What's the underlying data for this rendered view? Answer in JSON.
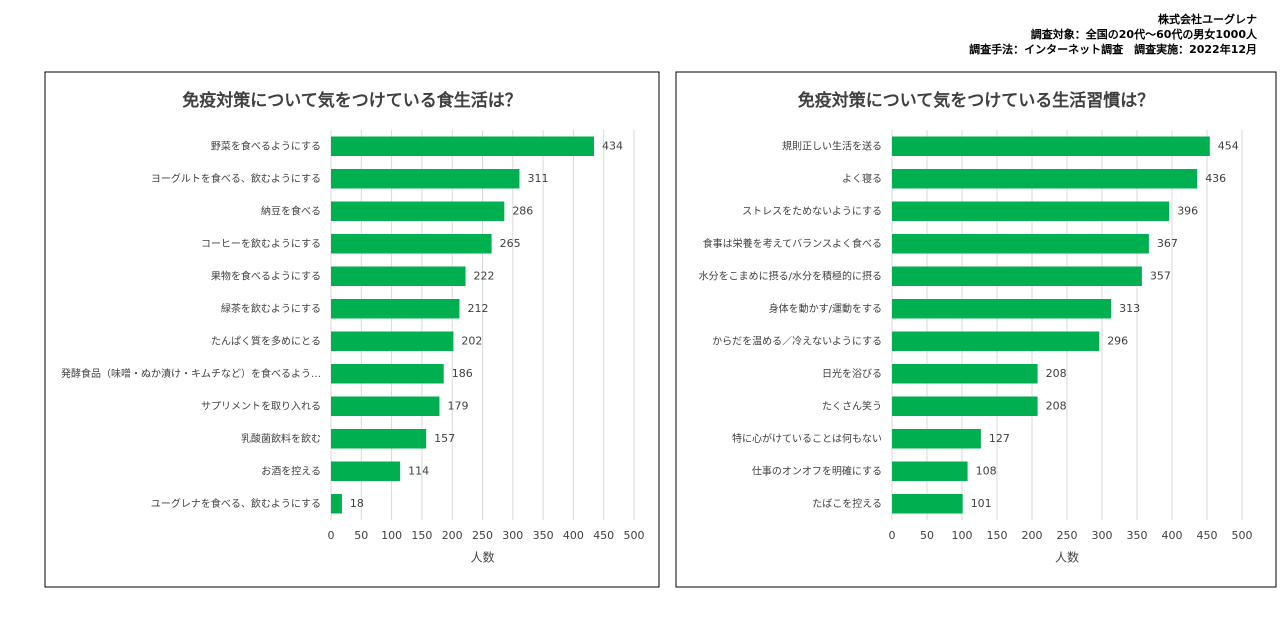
{
  "header": {
    "company": "株式会社ユーグレナ",
    "target": "調査対象：全国の20代～60代の男女1000人",
    "method": "調査手法：インターネット調査　調査実施：2022年12月"
  },
  "chart_data": [
    {
      "type": "bar",
      "orientation": "horizontal",
      "title": "免疫対策について気をつけている食生活は？",
      "xlabel": "人数",
      "color": "#00b050",
      "grid": true,
      "categories": [
        "野菜を食べるようにする",
        "ヨーグルトを食べる、飲むようにする",
        "納豆を食べる",
        "コーヒーを飲むようにする",
        "果物を食べるようにする",
        "緑茶を飲むようにする",
        "たんぱく質を多めにとる",
        "発酵食品（味噌・ぬか漬け・キムチなど）を食べるよう…",
        "サプリメントを取り入れる",
        "乳酸菌飲料を飲む",
        "お酒を控える",
        "ユーグレナを食べる、飲むようにする"
      ],
      "values": [
        434,
        311,
        286,
        265,
        222,
        212,
        202,
        186,
        179,
        157,
        114,
        18
      ],
      "xlim": [
        0,
        500
      ],
      "xticks": [
        0,
        50,
        100,
        150,
        200,
        250,
        300,
        350,
        400,
        450,
        500
      ]
    },
    {
      "type": "bar",
      "orientation": "horizontal",
      "title": "免疫対策について気をつけている生活習慣は？",
      "xlabel": "人数",
      "color": "#00b050",
      "grid": true,
      "categories": [
        "規則正しい生活を送る",
        "よく寝る",
        "ストレスをためないようにする",
        "食事は栄養を考えてバランスよく食べる",
        "水分をこまめに摂る/水分を積極的に摂る",
        "身体を動かす/運動をする",
        "からだを温める／冷えないようにする",
        "日光を浴びる",
        "たくさん笑う",
        "特に心がけていることは何もない",
        "仕事のオンオフを明確にする",
        "たばこを控える"
      ],
      "values": [
        454,
        436,
        396,
        367,
        357,
        313,
        296,
        208,
        208,
        127,
        108,
        101
      ],
      "xlim": [
        0,
        500
      ],
      "xticks": [
        0,
        50,
        100,
        150,
        200,
        250,
        300,
        350,
        400,
        450,
        500
      ]
    }
  ]
}
